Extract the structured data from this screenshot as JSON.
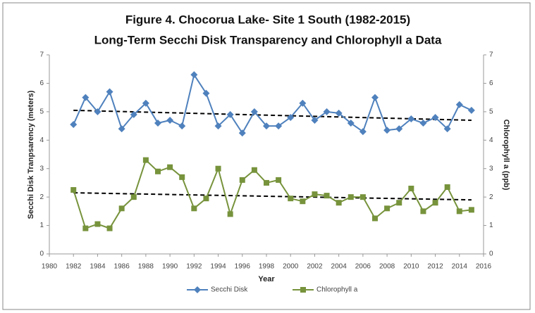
{
  "chart_data": {
    "type": "line",
    "title": [
      "Figure 4. Chocorua Lake- Site 1 South (1982-2015)",
      "Long-Term Secchi Disk Transparency and Chlorophyll a Data"
    ],
    "x_label": "Year",
    "y_label": "Secchi Disk Tranpsarency (meters)",
    "y2_label": "Chlorophyll a (ppb)",
    "x": [
      1982,
      1983,
      1984,
      1985,
      1986,
      1987,
      1988,
      1989,
      1990,
      1991,
      1992,
      1993,
      1994,
      1995,
      1996,
      1997,
      1998,
      1999,
      2000,
      2001,
      2002,
      2003,
      2004,
      2005,
      2006,
      2007,
      2008,
      2009,
      2010,
      2011,
      2012,
      2013,
      2014,
      2015
    ],
    "series": [
      {
        "name": "Secchi Disk",
        "color": "#4f81bd",
        "marker": "diamond",
        "values": [
          4.55,
          5.5,
          5.0,
          5.7,
          4.4,
          4.9,
          5.3,
          4.6,
          4.7,
          4.5,
          6.3,
          5.65,
          4.5,
          4.9,
          4.25,
          5.0,
          4.5,
          4.5,
          4.8,
          5.3,
          4.7,
          5.0,
          4.95,
          4.6,
          4.3,
          5.5,
          4.35,
          4.4,
          4.75,
          4.6,
          4.8,
          4.4,
          5.25,
          5.05
        ]
      },
      {
        "name": "Chlorophyll a",
        "color": "#77933c",
        "marker": "square",
        "axis": "y2",
        "values": [
          2.25,
          0.9,
          1.05,
          0.9,
          1.6,
          2.0,
          3.3,
          2.9,
          3.05,
          2.7,
          1.6,
          1.95,
          3.0,
          1.4,
          2.6,
          2.95,
          2.5,
          2.6,
          1.95,
          1.85,
          2.1,
          2.05,
          1.8,
          2.0,
          2.0,
          1.25,
          1.6,
          1.8,
          2.3,
          1.5,
          1.8,
          2.35,
          1.5,
          1.55
        ]
      }
    ],
    "trendlines": [
      {
        "color": "#000000",
        "x": [
          1982,
          2015
        ],
        "values": [
          5.05,
          4.7
        ]
      },
      {
        "color": "#000000",
        "x": [
          1982,
          2015
        ],
        "values": [
          2.15,
          1.9
        ],
        "axis": "y2"
      }
    ],
    "xlim": [
      1980,
      2016
    ],
    "xticks": [
      1980,
      1982,
      1984,
      1986,
      1988,
      1990,
      1992,
      1994,
      1996,
      1998,
      2000,
      2002,
      2004,
      2006,
      2008,
      2010,
      2012,
      2014,
      2016
    ],
    "ylim": [
      0,
      7
    ],
    "yticks": [
      0,
      1,
      2,
      3,
      4,
      5,
      6,
      7
    ],
    "y2lim": [
      0,
      7
    ],
    "y2ticks": [
      0,
      1,
      2,
      3,
      4,
      5,
      6,
      7
    ],
    "grid": false,
    "legend": "bottom"
  }
}
